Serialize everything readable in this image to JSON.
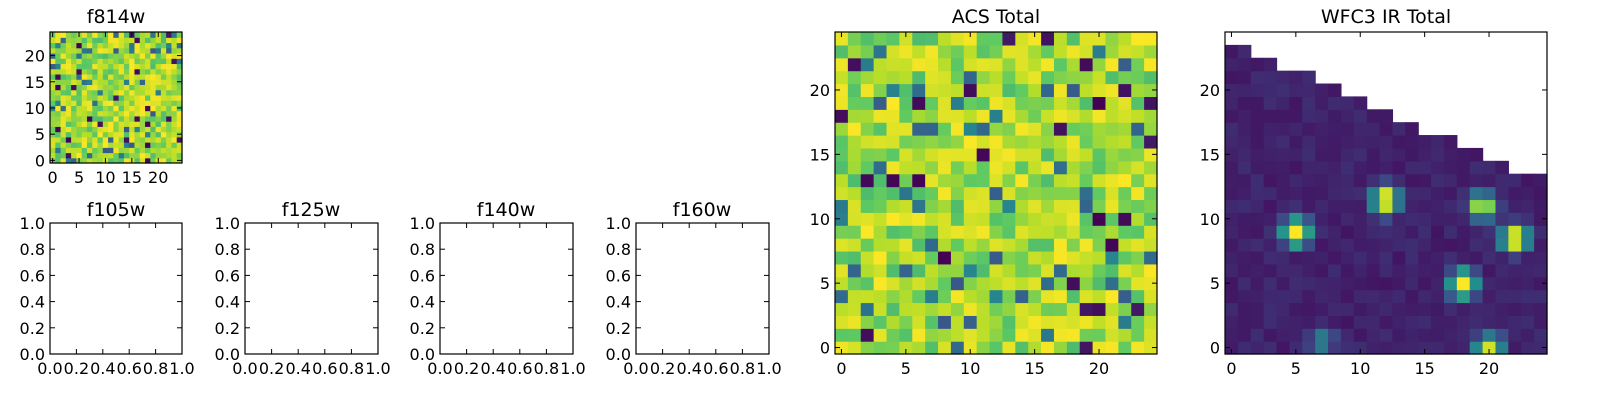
{
  "colormap": [
    "#440154",
    "#3b528b",
    "#21908d",
    "#5dc963",
    "#b8de29",
    "#fde725"
  ],
  "chart_data": [
    {
      "id": "f814w",
      "type": "heatmap",
      "title": "f814w",
      "grid": [
        25,
        25
      ],
      "seed": 11,
      "xlim": [
        -0.5,
        24.5
      ],
      "ylim": [
        -0.5,
        24.5
      ],
      "xticks": [
        0,
        5,
        10,
        15,
        20
      ],
      "yticks": [
        0,
        5,
        10,
        15,
        20
      ],
      "value_range": [
        0.0,
        1.0
      ],
      "pattern": "uniform noise, mostly green-yellow with scattered dark pixels"
    },
    {
      "id": "f105w",
      "type": "heatmap",
      "title": "f105w",
      "empty": true,
      "xlim": [
        0.0,
        1.0
      ],
      "ylim": [
        0.0,
        1.0
      ],
      "xticks": [
        "0.0",
        "0.2",
        "0.4",
        "0.6",
        "0.8",
        "1.0"
      ],
      "yticks": [
        "0.0",
        "0.2",
        "0.4",
        "0.6",
        "0.8",
        "1.0"
      ]
    },
    {
      "id": "f125w",
      "type": "heatmap",
      "title": "f125w",
      "empty": true,
      "xlim": [
        0.0,
        1.0
      ],
      "ylim": [
        0.0,
        1.0
      ],
      "xticks": [
        "0.0",
        "0.2",
        "0.4",
        "0.6",
        "0.8",
        "1.0"
      ],
      "yticks": [
        "0.0",
        "0.2",
        "0.4",
        "0.6",
        "0.8",
        "1.0"
      ]
    },
    {
      "id": "f140w",
      "type": "heatmap",
      "title": "f140w",
      "empty": true,
      "xlim": [
        0.0,
        1.0
      ],
      "ylim": [
        0.0,
        1.0
      ],
      "xticks": [
        "0.0",
        "0.2",
        "0.4",
        "0.6",
        "0.8",
        "1.0"
      ],
      "yticks": [
        "0.0",
        "0.2",
        "0.4",
        "0.6",
        "0.8",
        "1.0"
      ]
    },
    {
      "id": "f160w",
      "type": "heatmap",
      "title": "f160w",
      "empty": true,
      "xlim": [
        0.0,
        1.0
      ],
      "ylim": [
        0.0,
        1.0
      ],
      "xticks": [
        "0.0",
        "0.2",
        "0.4",
        "0.6",
        "0.8",
        "1.0"
      ],
      "yticks": [
        "0.0",
        "0.2",
        "0.4",
        "0.6",
        "0.8",
        "1.0"
      ]
    },
    {
      "id": "acs",
      "type": "heatmap",
      "title": "ACS Total",
      "grid": [
        25,
        25
      ],
      "seed": 29,
      "xlim": [
        -0.5,
        24.5
      ],
      "ylim": [
        -0.5,
        24.5
      ],
      "xticks": [
        0,
        5,
        10,
        15,
        20
      ],
      "yticks": [
        0,
        5,
        10,
        15,
        20
      ],
      "value_range": [
        0.0,
        1.0
      ],
      "pattern": "uniform noise, mostly green-yellow with scattered dark pixels"
    },
    {
      "id": "wfc3",
      "type": "heatmap",
      "title": "WFC3 IR Total",
      "grid": [
        25,
        25
      ],
      "xlim": [
        -0.5,
        24.5
      ],
      "ylim": [
        -0.5,
        24.5
      ],
      "xticks": [
        0,
        5,
        10,
        15,
        20
      ],
      "yticks": [
        0,
        5,
        10,
        15,
        20
      ],
      "value_range": [
        0.0,
        1.0
      ],
      "background_level": 0.05,
      "masked_region": "upper-right triangle (no data)",
      "row_top_by_column": [
        23,
        23,
        22,
        22,
        21,
        21,
        21,
        20,
        20,
        19,
        19,
        18,
        18,
        17,
        17,
        16,
        16,
        16,
        15,
        15,
        14,
        14,
        13,
        13,
        13
      ],
      "bright_sources": [
        {
          "x": 5,
          "y": 9,
          "peak": 1.0
        },
        {
          "x": 12,
          "y": 11.5,
          "peak": 1.0
        },
        {
          "x": 18,
          "y": 5,
          "peak": 1.0
        },
        {
          "x": 19.5,
          "y": 11,
          "peak": 0.8
        },
        {
          "x": 22,
          "y": 8.5,
          "peak": 1.0
        },
        {
          "x": 7,
          "y": 0.5,
          "peak": 0.35
        },
        {
          "x": 20,
          "y": 0,
          "peak": 0.8
        }
      ]
    }
  ]
}
